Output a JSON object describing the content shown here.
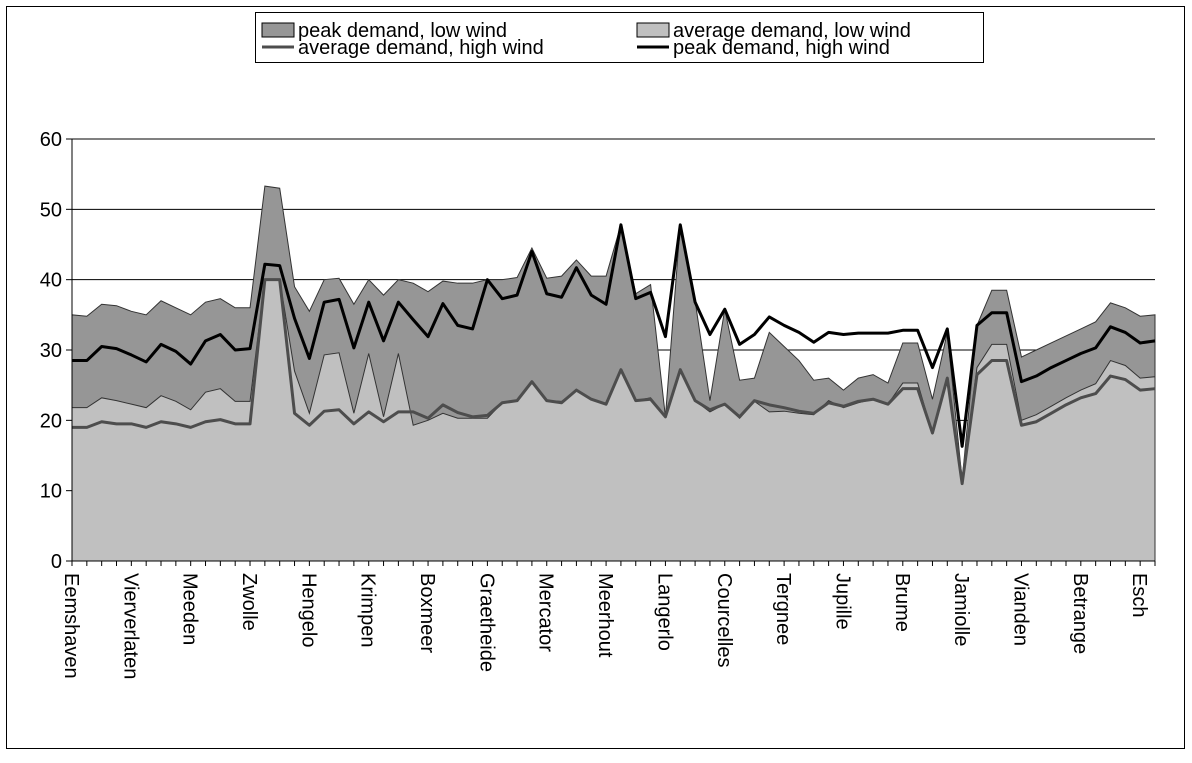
{
  "chart_data": {
    "type": "area",
    "categories": [
      "Eemshaven",
      null,
      null,
      null,
      "Vierverlaten",
      null,
      null,
      null,
      "Meeden",
      null,
      null,
      null,
      "Zwolle",
      null,
      null,
      null,
      "Hengelo",
      null,
      null,
      null,
      "Krimpen",
      null,
      null,
      null,
      "Boxmeer",
      null,
      null,
      null,
      "Graetheide",
      null,
      null,
      null,
      "Mercator",
      null,
      null,
      null,
      "Meerhout",
      null,
      null,
      null,
      "Langerlo",
      null,
      null,
      null,
      "Courcelles",
      null,
      null,
      null,
      "Tergnee",
      null,
      null,
      null,
      "Jupille",
      null,
      null,
      null,
      "Brume",
      null,
      null,
      null,
      "Jamiolle",
      null,
      null,
      null,
      "Vianden",
      null,
      null,
      null,
      "Betrange",
      null,
      null,
      null,
      "Esch",
      null
    ],
    "series": [
      {
        "name": "peak demand, low wind",
        "type": "area",
        "color": "#969696",
        "values": [
          35,
          34.8,
          36.5,
          36.3,
          35.5,
          35,
          37,
          36,
          35,
          36.8,
          37.3,
          36,
          36,
          53.3,
          53,
          39,
          35.5,
          40,
          40.2,
          36.5,
          40,
          37.8,
          40,
          39.5,
          38.3,
          39.8,
          39.5,
          39.5,
          40,
          40,
          40.3,
          44.5,
          40.2,
          40.5,
          42.8,
          40.5,
          40.5,
          47.8,
          38,
          39.3,
          20.5,
          47.8,
          37,
          22.8,
          35.8,
          25.7,
          26,
          32.5,
          30.5,
          28.5,
          25.7,
          26,
          24.3,
          26,
          26.5,
          25.3,
          31,
          31,
          23,
          32.5,
          11.5,
          33.5,
          38.5,
          38.5,
          29,
          30,
          31,
          32,
          33,
          34,
          36.7,
          36,
          34.8,
          35
        ]
      },
      {
        "name": "average demand, low wind",
        "type": "area",
        "color": "#c0c0c0",
        "values": [
          21.8,
          21.8,
          23.2,
          22.8,
          22.3,
          21.8,
          23.5,
          22.7,
          21.5,
          24,
          24.5,
          22.7,
          22.7,
          40,
          40,
          27,
          21,
          29.3,
          29.6,
          21,
          29.5,
          20.5,
          29.5,
          19.3,
          20,
          21,
          20.3,
          20.3,
          20.3,
          22.5,
          22.8,
          25.5,
          22.8,
          22.7,
          24.3,
          23,
          22.3,
          27.2,
          22.8,
          23.2,
          20.5,
          27.2,
          22.8,
          21.2,
          22.3,
          20.3,
          22.7,
          21.2,
          21.3,
          21,
          20.8,
          22.8,
          21.8,
          22.5,
          23,
          22.3,
          25.3,
          25.3,
          18.2,
          26,
          11.2,
          27.5,
          30.8,
          30.8,
          20,
          20.8,
          22,
          23.2,
          24.3,
          25.2,
          28.5,
          27.8,
          26,
          26.2
        ]
      },
      {
        "name": "average demand, high wind",
        "type": "line",
        "color": "#4d4d4d",
        "values": [
          19,
          19,
          19.8,
          19.5,
          19.5,
          19,
          19.8,
          19.5,
          19,
          19.8,
          20.1,
          19.5,
          19.5,
          40,
          40,
          21,
          19.3,
          21.3,
          21.5,
          19.5,
          21.2,
          19.8,
          21.2,
          21.2,
          20.3,
          22.2,
          21.1,
          20.5,
          20.7,
          22.5,
          22.8,
          25.5,
          22.8,
          22.5,
          24.3,
          23,
          22.3,
          27.2,
          22.8,
          23,
          20.5,
          27.2,
          22.8,
          21.5,
          22.3,
          20.5,
          22.8,
          22.2,
          21.8,
          21.3,
          21,
          22.5,
          22,
          22.7,
          23,
          22.3,
          24.5,
          24.5,
          18.2,
          26,
          11,
          26.5,
          28.5,
          28.5,
          19.3,
          19.8,
          21,
          22.2,
          23.2,
          23.8,
          26.3,
          25.8,
          24.3,
          24.5
        ]
      },
      {
        "name": "peak demand, high wind",
        "type": "line",
        "color": "#000000",
        "values": [
          28.5,
          28.5,
          30.5,
          30.2,
          29.3,
          28.3,
          30.8,
          29.8,
          28,
          31.3,
          32.2,
          30,
          30.2,
          42.2,
          42,
          34.5,
          28.8,
          36.8,
          37.2,
          30.3,
          36.8,
          31.3,
          36.8,
          34.3,
          31.9,
          36.6,
          33.5,
          33,
          40,
          37.3,
          37.8,
          44,
          38,
          37.5,
          41.7,
          37.8,
          36.5,
          47.8,
          37.3,
          38.2,
          31.9,
          47.8,
          36.8,
          32.2,
          35.8,
          30.8,
          32.2,
          34.7,
          33.5,
          32.5,
          31.1,
          32.5,
          32.2,
          32.4,
          32.4,
          32.4,
          32.8,
          32.8,
          27.5,
          33,
          16.3,
          33.5,
          35.3,
          35.3,
          25.5,
          26.3,
          27.5,
          28.5,
          29.5,
          30.3,
          33.3,
          32.5,
          31,
          31.3
        ]
      }
    ],
    "ylim": [
      0,
      60
    ],
    "yticks": [
      0,
      10,
      20,
      30,
      40,
      50,
      60
    ],
    "grid": true,
    "legend": "top"
  }
}
